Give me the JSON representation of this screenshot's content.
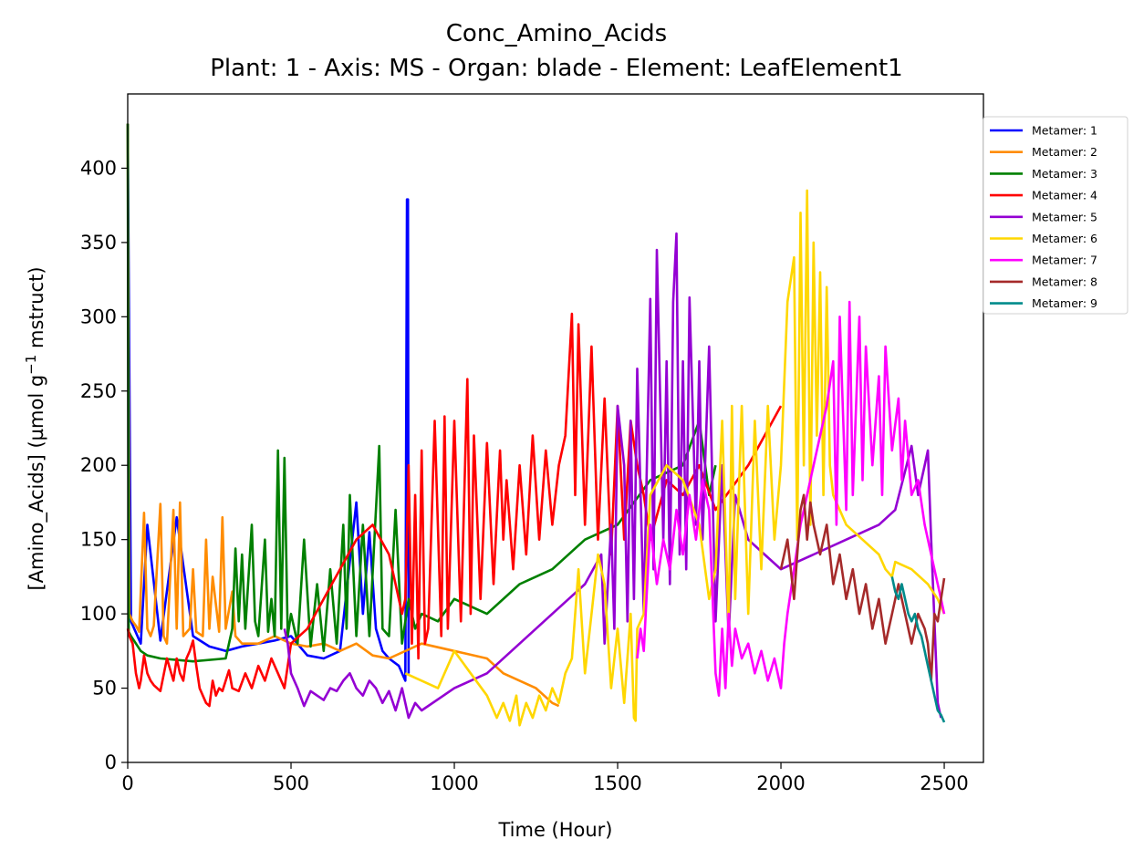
{
  "chart_data": {
    "type": "line",
    "title": "Conc_Amino_Acids",
    "subtitle": "Plant: 1 - Axis: MS - Organ: blade - Element: LeafElement1",
    "xlabel": "Time (Hour)",
    "ylabel_main": "[Amino_Acids] (µmol g",
    "ylabel_sup": "−1",
    "ylabel_end": " mstruct)",
    "xlim": [
      0,
      2620
    ],
    "ylim": [
      0,
      450
    ],
    "xticks": [
      0,
      500,
      1000,
      1500,
      2000,
      2500
    ],
    "xtick_labels": [
      "0",
      "500",
      "1000",
      "1500",
      "2000",
      "2500"
    ],
    "yticks": [
      0,
      50,
      100,
      150,
      200,
      250,
      300,
      350,
      400
    ],
    "ytick_labels": [
      "0",
      "50",
      "100",
      "150",
      "200",
      "250",
      "300",
      "350",
      "400"
    ],
    "legend_position": "upper-right-outside",
    "series": [
      {
        "name": "Metamer: 1",
        "color": "#0000ff",
        "x": [
          0,
          10,
          40,
          60,
          100,
          150,
          200,
          250,
          300,
          350,
          400,
          450,
          500,
          550,
          600,
          650,
          700,
          720,
          740,
          760,
          780,
          800,
          830,
          850,
          855,
          858,
          860,
          862
        ],
        "y": [
          430,
          95,
          80,
          160,
          82,
          165,
          85,
          78,
          75,
          78,
          80,
          82,
          85,
          72,
          70,
          75,
          175,
          100,
          155,
          90,
          75,
          70,
          65,
          55,
          379,
          379,
          60,
          60
        ]
      },
      {
        "name": "Metamer: 2",
        "color": "#ff8c00",
        "x": [
          0,
          5,
          15,
          25,
          35,
          50,
          60,
          70,
          80,
          100,
          110,
          120,
          140,
          150,
          160,
          170,
          190,
          200,
          210,
          230,
          240,
          250,
          260,
          280,
          290,
          300,
          320,
          330,
          350,
          400,
          450,
          500,
          550,
          600,
          650,
          700,
          750,
          800,
          900,
          1000,
          1100,
          1150,
          1200,
          1250,
          1300,
          1320
        ],
        "y": [
          430,
          100,
          95,
          92,
          88,
          168,
          90,
          85,
          92,
          174,
          85,
          80,
          170,
          90,
          175,
          85,
          90,
          130,
          88,
          85,
          150,
          90,
          125,
          88,
          165,
          90,
          115,
          85,
          80,
          80,
          85,
          80,
          78,
          80,
          75,
          80,
          72,
          70,
          80,
          75,
          70,
          60,
          55,
          50,
          40,
          38
        ]
      },
      {
        "name": "Metamer: 3",
        "color": "#008000",
        "x": [
          0,
          3,
          10,
          25,
          40,
          60,
          100,
          200,
          300,
          310,
          320,
          330,
          340,
          350,
          360,
          380,
          390,
          400,
          420,
          430,
          440,
          450,
          460,
          470,
          480,
          490,
          500,
          520,
          540,
          560,
          580,
          600,
          620,
          640,
          660,
          670,
          680,
          700,
          720,
          740,
          760,
          770,
          780,
          800,
          820,
          840,
          860,
          880,
          900,
          950,
          1000,
          1100,
          1200,
          1300,
          1400,
          1500,
          1600,
          1700,
          1750,
          1780,
          1800
        ],
        "y": [
          430,
          88,
          85,
          80,
          75,
          72,
          70,
          68,
          70,
          80,
          90,
          144,
          95,
          140,
          90,
          160,
          95,
          85,
          150,
          88,
          110,
          85,
          210,
          90,
          205,
          85,
          100,
          80,
          150,
          78,
          120,
          75,
          130,
          80,
          160,
          90,
          180,
          85,
          160,
          85,
          170,
          213,
          90,
          85,
          170,
          80,
          110,
          90,
          100,
          95,
          110,
          100,
          120,
          130,
          150,
          160,
          190,
          200,
          230,
          180,
          200
        ]
      },
      {
        "name": "Metamer: 4",
        "color": "#ff0000",
        "x": [
          0,
          5,
          15,
          25,
          35,
          40,
          50,
          60,
          70,
          80,
          90,
          100,
          120,
          140,
          150,
          160,
          170,
          180,
          190,
          200,
          210,
          220,
          230,
          240,
          250,
          260,
          270,
          280,
          290,
          300,
          310,
          320,
          340,
          360,
          380,
          400,
          420,
          440,
          460,
          480,
          500,
          550,
          600,
          650,
          700,
          750,
          800,
          820,
          840,
          850,
          860,
          870,
          880,
          890,
          900,
          910,
          920,
          940,
          960,
          970,
          980,
          1000,
          1020,
          1040,
          1050,
          1060,
          1080,
          1100,
          1120,
          1140,
          1150,
          1160,
          1180,
          1200,
          1220,
          1240,
          1260,
          1280,
          1300,
          1320,
          1340,
          1360,
          1370,
          1380,
          1400,
          1420,
          1440,
          1460,
          1480,
          1500,
          1520,
          1540,
          1560,
          1580,
          1600,
          1650,
          1700,
          1750,
          1800,
          1900,
          2000
        ],
        "y": [
          90,
          85,
          80,
          60,
          50,
          55,
          72,
          60,
          55,
          52,
          50,
          48,
          70,
          55,
          70,
          60,
          55,
          70,
          75,
          82,
          65,
          50,
          45,
          40,
          38,
          55,
          45,
          50,
          48,
          55,
          62,
          50,
          48,
          60,
          50,
          65,
          55,
          70,
          60,
          50,
          80,
          90,
          110,
          130,
          150,
          160,
          140,
          120,
          100,
          110,
          200,
          80,
          180,
          70,
          210,
          80,
          90,
          230,
          85,
          233,
          90,
          230,
          95,
          258,
          100,
          220,
          110,
          215,
          120,
          210,
          150,
          190,
          130,
          200,
          140,
          220,
          150,
          210,
          160,
          200,
          220,
          302,
          180,
          295,
          160,
          280,
          150,
          245,
          140,
          240,
          150,
          230,
          200,
          180,
          150,
          190,
          180,
          200,
          170,
          200,
          240
        ]
      },
      {
        "name": "Metamer: 5",
        "color": "#9400d3",
        "x": [
          480,
          490,
          500,
          520,
          540,
          560,
          580,
          600,
          620,
          640,
          660,
          680,
          700,
          720,
          740,
          760,
          780,
          800,
          820,
          840,
          860,
          880,
          900,
          1000,
          1100,
          1200,
          1300,
          1400,
          1450,
          1460,
          1480,
          1490,
          1500,
          1520,
          1530,
          1540,
          1550,
          1560,
          1580,
          1600,
          1610,
          1620,
          1640,
          1650,
          1660,
          1670,
          1680,
          1690,
          1700,
          1710,
          1720,
          1740,
          1750,
          1760,
          1780,
          1800,
          1820,
          1840,
          1860,
          1900,
          1950,
          2000,
          2100,
          2200,
          2300,
          2350,
          2400,
          2420,
          2440,
          2450,
          2460,
          2480,
          2490
        ],
        "y": [
          90,
          80,
          60,
          50,
          38,
          48,
          45,
          42,
          50,
          48,
          55,
          60,
          50,
          45,
          55,
          50,
          40,
          48,
          35,
          50,
          30,
          40,
          35,
          50,
          60,
          80,
          100,
          120,
          140,
          80,
          160,
          90,
          240,
          200,
          95,
          230,
          110,
          265,
          100,
          312,
          130,
          345,
          150,
          270,
          120,
          310,
          356,
          140,
          270,
          130,
          313,
          160,
          270,
          150,
          280,
          95,
          200,
          85,
          180,
          150,
          140,
          130,
          140,
          150,
          160,
          170,
          213,
          180,
          200,
          210,
          150,
          40,
          30
        ]
      },
      {
        "name": "Metamer: 6",
        "color": "#ffd700",
        "x": [
          850,
          900,
          950,
          1000,
          1050,
          1100,
          1130,
          1150,
          1170,
          1190,
          1200,
          1220,
          1240,
          1260,
          1280,
          1300,
          1320,
          1340,
          1360,
          1380,
          1400,
          1420,
          1440,
          1460,
          1480,
          1500,
          1520,
          1540,
          1550,
          1555,
          1560,
          1580,
          1600,
          1650,
          1700,
          1750,
          1780,
          1800,
          1820,
          1840,
          1850,
          1860,
          1880,
          1900,
          1920,
          1940,
          1960,
          1980,
          2000,
          2020,
          2040,
          2050,
          2060,
          2070,
          2080,
          2090,
          2100,
          2110,
          2120,
          2130,
          2140,
          2150,
          2160,
          2200,
          2250,
          2300,
          2320,
          2340,
          2350,
          2400,
          2450,
          2480,
          2490,
          2500
        ],
        "y": [
          60,
          55,
          50,
          75,
          60,
          45,
          30,
          40,
          28,
          45,
          25,
          40,
          30,
          45,
          35,
          50,
          40,
          60,
          70,
          130,
          60,
          100,
          140,
          120,
          50,
          90,
          40,
          100,
          30,
          28,
          90,
          100,
          180,
          200,
          190,
          160,
          110,
          130,
          230,
          90,
          240,
          110,
          240,
          100,
          230,
          130,
          240,
          150,
          200,
          310,
          340,
          150,
          370,
          200,
          385,
          160,
          350,
          220,
          330,
          180,
          320,
          200,
          180,
          160,
          150,
          140,
          130,
          125,
          135,
          130,
          120,
          110,
          105,
          100
        ]
      },
      {
        "name": "Metamer: 7",
        "color": "#ff00ff",
        "x": [
          1560,
          1570,
          1580,
          1600,
          1620,
          1640,
          1660,
          1680,
          1700,
          1720,
          1740,
          1760,
          1780,
          1800,
          1810,
          1820,
          1830,
          1840,
          1850,
          1860,
          1880,
          1900,
          1920,
          1940,
          1960,
          1980,
          2000,
          2010,
          2020,
          2040,
          2060,
          2080,
          2100,
          2120,
          2140,
          2160,
          2170,
          2180,
          2200,
          2210,
          2220,
          2240,
          2250,
          2260,
          2280,
          2300,
          2310,
          2320,
          2340,
          2360,
          2370,
          2380,
          2400,
          2420,
          2440,
          2460,
          2480,
          2490,
          2500
        ],
        "y": [
          70,
          90,
          75,
          160,
          120,
          150,
          130,
          170,
          140,
          180,
          150,
          190,
          170,
          60,
          45,
          90,
          50,
          100,
          65,
          90,
          70,
          80,
          60,
          75,
          55,
          70,
          50,
          80,
          100,
          130,
          160,
          180,
          200,
          220,
          240,
          270,
          160,
          300,
          170,
          310,
          180,
          300,
          190,
          280,
          200,
          260,
          180,
          280,
          210,
          245,
          190,
          230,
          180,
          190,
          160,
          140,
          120,
          110,
          100
        ]
      },
      {
        "name": "Metamer: 8",
        "color": "#a52a2a",
        "x": [
          2000,
          2020,
          2040,
          2060,
          2070,
          2080,
          2090,
          2100,
          2120,
          2140,
          2160,
          2180,
          2200,
          2220,
          2240,
          2260,
          2280,
          2300,
          2320,
          2340,
          2360,
          2380,
          2400,
          2420,
          2440,
          2450,
          2460,
          2470,
          2480,
          2490,
          2500
        ],
        "y": [
          130,
          150,
          110,
          170,
          180,
          150,
          175,
          160,
          140,
          160,
          120,
          140,
          110,
          130,
          100,
          120,
          90,
          110,
          80,
          100,
          120,
          100,
          80,
          100,
          90,
          80,
          55,
          100,
          95,
          110,
          124
        ]
      },
      {
        "name": "Metamer: 9",
        "color": "#008b8b",
        "x": [
          2340,
          2350,
          2360,
          2370,
          2380,
          2390,
          2400,
          2410,
          2420,
          2430,
          2440,
          2450,
          2460,
          2470,
          2480,
          2490,
          2500
        ],
        "y": [
          125,
          115,
          110,
          120,
          110,
          100,
          95,
          100,
          90,
          85,
          75,
          65,
          55,
          45,
          35,
          32,
          27
        ]
      }
    ]
  }
}
